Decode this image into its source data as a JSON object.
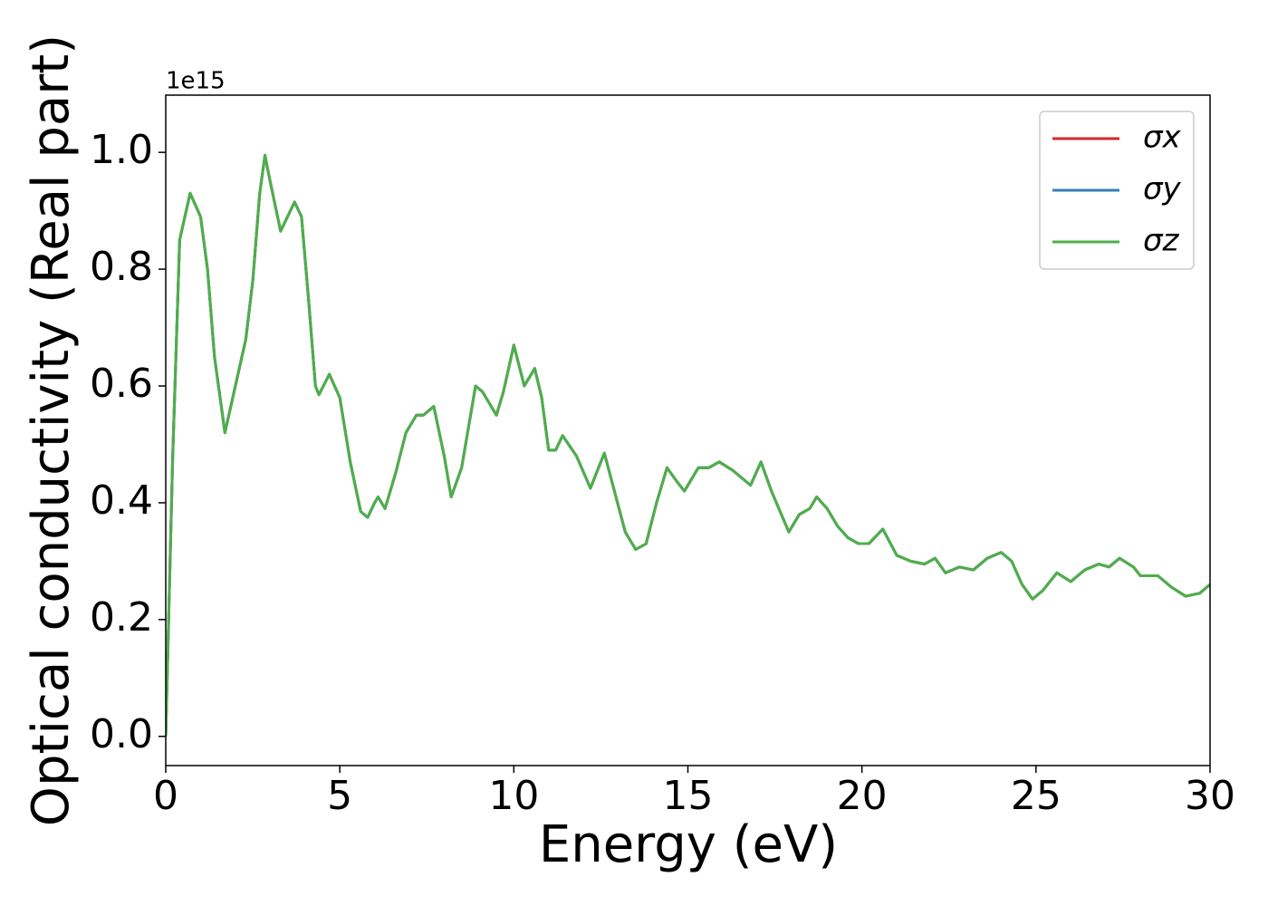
{
  "chart_data": {
    "type": "line",
    "xlabel": "Energy (eV)",
    "ylabel": "Optical conductivity (Real part)",
    "offset_label": "1e15",
    "x": [
      0,
      0.2,
      0.4,
      0.7,
      1.0,
      1.2,
      1.4,
      1.7,
      2.0,
      2.3,
      2.5,
      2.7,
      2.85,
      3.0,
      3.3,
      3.5,
      3.7,
      3.9,
      4.1,
      4.3,
      4.4,
      4.7,
      5.0,
      5.3,
      5.6,
      5.8,
      6.0,
      6.1,
      6.3,
      6.6,
      6.9,
      7.2,
      7.4,
      7.7,
      8.0,
      8.2,
      8.5,
      8.9,
      9.1,
      9.5,
      9.7,
      10.0,
      10.3,
      10.6,
      10.8,
      11.0,
      11.2,
      11.4,
      11.8,
      12.2,
      12.6,
      12.8,
      13.2,
      13.5,
      13.8,
      14.1,
      14.4,
      14.7,
      14.9,
      15.3,
      15.6,
      15.9,
      16.3,
      16.8,
      17.1,
      17.4,
      17.9,
      18.2,
      18.5,
      18.7,
      19.0,
      19.3,
      19.6,
      19.9,
      20.2,
      20.6,
      21.0,
      21.4,
      21.8,
      22.1,
      22.4,
      22.8,
      23.2,
      23.6,
      24.0,
      24.3,
      24.6,
      24.9,
      25.2,
      25.6,
      26.0,
      26.4,
      26.8,
      27.1,
      27.4,
      27.8,
      28.0,
      28.5,
      28.9,
      29.3,
      29.7,
      30.0
    ],
    "series": [
      {
        "name": "σx",
        "color": "#d62728",
        "values": [
          0,
          0.48,
          0.85,
          0.93,
          0.89,
          0.8,
          0.65,
          0.52,
          0.6,
          0.68,
          0.78,
          0.93,
          0.995,
          0.95,
          0.865,
          0.89,
          0.915,
          0.89,
          0.75,
          0.6,
          0.585,
          0.62,
          0.58,
          0.47,
          0.385,
          0.375,
          0.4,
          0.41,
          0.39,
          0.45,
          0.52,
          0.55,
          0.55,
          0.565,
          0.48,
          0.41,
          0.46,
          0.6,
          0.59,
          0.55,
          0.59,
          0.67,
          0.6,
          0.63,
          0.58,
          0.49,
          0.49,
          0.515,
          0.48,
          0.425,
          0.485,
          0.44,
          0.35,
          0.32,
          0.33,
          0.4,
          0.46,
          0.435,
          0.42,
          0.46,
          0.46,
          0.47,
          0.455,
          0.43,
          0.47,
          0.42,
          0.35,
          0.38,
          0.39,
          0.41,
          0.39,
          0.36,
          0.34,
          0.33,
          0.33,
          0.355,
          0.31,
          0.3,
          0.295,
          0.305,
          0.28,
          0.29,
          0.285,
          0.305,
          0.315,
          0.3,
          0.26,
          0.235,
          0.25,
          0.28,
          0.265,
          0.285,
          0.295,
          0.29,
          0.305,
          0.29,
          0.275,
          0.275,
          0.255,
          0.24,
          0.245,
          0.26
        ]
      },
      {
        "name": "σy",
        "color": "#377eb8",
        "values": [
          0,
          0.48,
          0.85,
          0.93,
          0.89,
          0.8,
          0.65,
          0.52,
          0.6,
          0.68,
          0.78,
          0.93,
          0.995,
          0.95,
          0.865,
          0.89,
          0.915,
          0.89,
          0.75,
          0.6,
          0.585,
          0.62,
          0.58,
          0.47,
          0.385,
          0.375,
          0.4,
          0.41,
          0.39,
          0.45,
          0.52,
          0.55,
          0.55,
          0.565,
          0.48,
          0.41,
          0.46,
          0.6,
          0.59,
          0.55,
          0.59,
          0.67,
          0.6,
          0.63,
          0.58,
          0.49,
          0.49,
          0.515,
          0.48,
          0.425,
          0.485,
          0.44,
          0.35,
          0.32,
          0.33,
          0.4,
          0.46,
          0.435,
          0.42,
          0.46,
          0.46,
          0.47,
          0.455,
          0.43,
          0.47,
          0.42,
          0.35,
          0.38,
          0.39,
          0.41,
          0.39,
          0.36,
          0.34,
          0.33,
          0.33,
          0.355,
          0.31,
          0.3,
          0.295,
          0.305,
          0.28,
          0.29,
          0.285,
          0.305,
          0.315,
          0.3,
          0.26,
          0.235,
          0.25,
          0.28,
          0.265,
          0.285,
          0.295,
          0.29,
          0.305,
          0.29,
          0.275,
          0.275,
          0.255,
          0.24,
          0.245,
          0.26
        ]
      },
      {
        "name": "σz",
        "color": "#4daf4a",
        "values": [
          0,
          0.48,
          0.85,
          0.93,
          0.89,
          0.8,
          0.65,
          0.52,
          0.6,
          0.68,
          0.78,
          0.93,
          0.995,
          0.95,
          0.865,
          0.89,
          0.915,
          0.89,
          0.75,
          0.6,
          0.585,
          0.62,
          0.58,
          0.47,
          0.385,
          0.375,
          0.4,
          0.41,
          0.39,
          0.45,
          0.52,
          0.55,
          0.55,
          0.565,
          0.48,
          0.41,
          0.46,
          0.6,
          0.59,
          0.55,
          0.59,
          0.67,
          0.6,
          0.63,
          0.58,
          0.49,
          0.49,
          0.515,
          0.48,
          0.425,
          0.485,
          0.44,
          0.35,
          0.32,
          0.33,
          0.4,
          0.46,
          0.435,
          0.42,
          0.46,
          0.46,
          0.47,
          0.455,
          0.43,
          0.47,
          0.42,
          0.35,
          0.38,
          0.39,
          0.41,
          0.39,
          0.36,
          0.34,
          0.33,
          0.33,
          0.355,
          0.31,
          0.3,
          0.295,
          0.305,
          0.28,
          0.29,
          0.285,
          0.305,
          0.315,
          0.3,
          0.26,
          0.235,
          0.25,
          0.28,
          0.265,
          0.285,
          0.295,
          0.29,
          0.305,
          0.29,
          0.275,
          0.275,
          0.255,
          0.24,
          0.245,
          0.26
        ]
      }
    ],
    "xlim": [
      0,
      30
    ],
    "xticks": [
      0,
      5,
      10,
      15,
      20,
      25,
      30
    ],
    "ylim": [
      -0.05,
      1.098
    ],
    "yticks": [
      {
        "value": 0,
        "label": "0.0"
      },
      0.2,
      0.4,
      0.6,
      0.8,
      {
        "value": 1,
        "label": "1.0"
      }
    ],
    "grid": false,
    "legend": "upper right"
  }
}
